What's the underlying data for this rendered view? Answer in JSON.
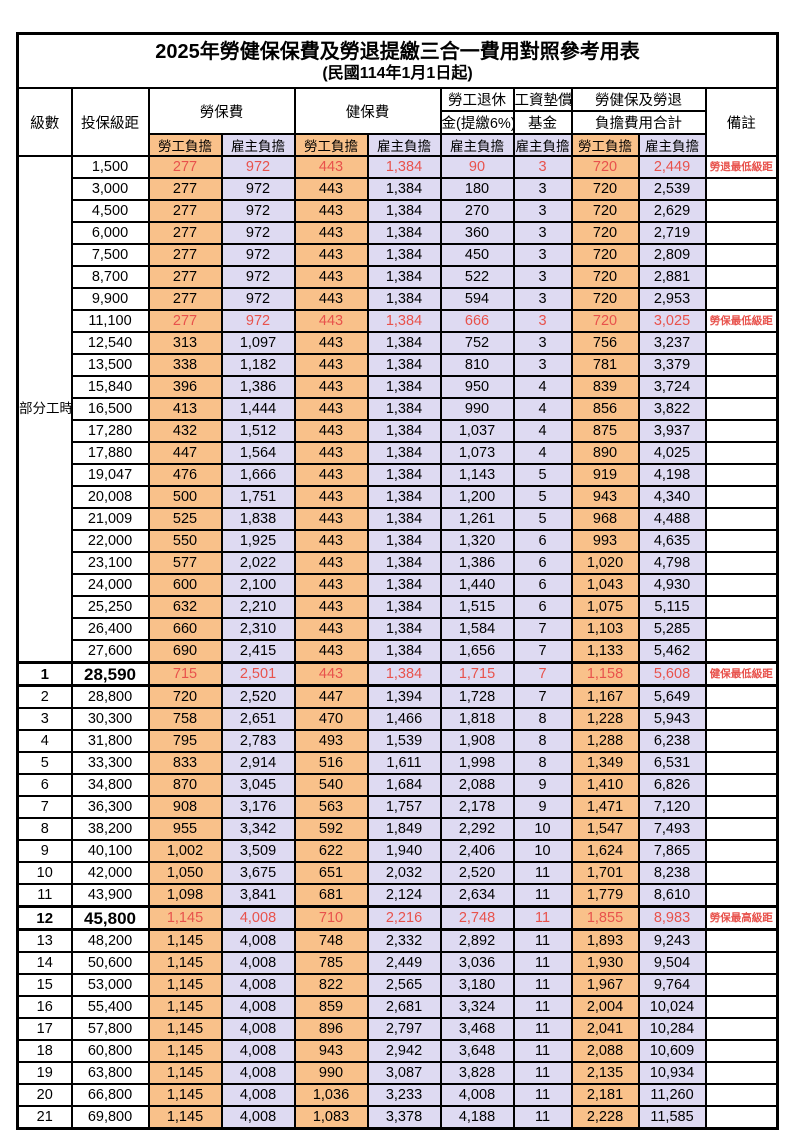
{
  "title": "2025年勞健保保費及勞退提繳三合一費用對照參考用表",
  "subtitle": "(民國114年1月1日起)",
  "columns": {
    "level": "級數",
    "bracket": "投保級距",
    "labor_insurance": "勞保費",
    "health_insurance": "健保費",
    "pension_line1": "勞工退休",
    "pension_line2": "金(提繳6%)",
    "wage_fund_line1": "工資墊償",
    "wage_fund_line2": "基金",
    "total_line1": "勞健保及勞退",
    "total_line2": "負擔費用合計",
    "note": "備註",
    "employee_burden": "勞工負擔",
    "employer_burden": "雇主負擔"
  },
  "group": {
    "label": "部分工時",
    "span": 23
  },
  "colors": {
    "employee_bg": "#F9C18A",
    "employer_bg": "#DEDAF2",
    "highlight": "#E8524C"
  },
  "rows": [
    {
      "level": "",
      "bracket": "1,500",
      "v": [
        "277",
        "972",
        "443",
        "1,384",
        "90",
        "3",
        "720",
        "2,449"
      ],
      "note": "勞退最低級距",
      "red": true,
      "bold": false
    },
    {
      "level": "",
      "bracket": "3,000",
      "v": [
        "277",
        "972",
        "443",
        "1,384",
        "180",
        "3",
        "720",
        "2,539"
      ],
      "note": "",
      "red": false,
      "bold": false
    },
    {
      "level": "",
      "bracket": "4,500",
      "v": [
        "277",
        "972",
        "443",
        "1,384",
        "270",
        "3",
        "720",
        "2,629"
      ],
      "note": "",
      "red": false,
      "bold": false
    },
    {
      "level": "",
      "bracket": "6,000",
      "v": [
        "277",
        "972",
        "443",
        "1,384",
        "360",
        "3",
        "720",
        "2,719"
      ],
      "note": "",
      "red": false,
      "bold": false
    },
    {
      "level": "",
      "bracket": "7,500",
      "v": [
        "277",
        "972",
        "443",
        "1,384",
        "450",
        "3",
        "720",
        "2,809"
      ],
      "note": "",
      "red": false,
      "bold": false
    },
    {
      "level": "",
      "bracket": "8,700",
      "v": [
        "277",
        "972",
        "443",
        "1,384",
        "522",
        "3",
        "720",
        "2,881"
      ],
      "note": "",
      "red": false,
      "bold": false
    },
    {
      "level": "",
      "bracket": "9,900",
      "v": [
        "277",
        "972",
        "443",
        "1,384",
        "594",
        "3",
        "720",
        "2,953"
      ],
      "note": "",
      "red": false,
      "bold": false
    },
    {
      "level": "",
      "bracket": "11,100",
      "v": [
        "277",
        "972",
        "443",
        "1,384",
        "666",
        "3",
        "720",
        "3,025"
      ],
      "note": "勞保最低級距",
      "red": true,
      "bold": false
    },
    {
      "level": "",
      "bracket": "12,540",
      "v": [
        "313",
        "1,097",
        "443",
        "1,384",
        "752",
        "3",
        "756",
        "3,237"
      ],
      "note": "",
      "red": false,
      "bold": false
    },
    {
      "level": "",
      "bracket": "13,500",
      "v": [
        "338",
        "1,182",
        "443",
        "1,384",
        "810",
        "3",
        "781",
        "3,379"
      ],
      "note": "",
      "red": false,
      "bold": false
    },
    {
      "level": "",
      "bracket": "15,840",
      "v": [
        "396",
        "1,386",
        "443",
        "1,384",
        "950",
        "4",
        "839",
        "3,724"
      ],
      "note": "",
      "red": false,
      "bold": false
    },
    {
      "level": "",
      "bracket": "16,500",
      "v": [
        "413",
        "1,444",
        "443",
        "1,384",
        "990",
        "4",
        "856",
        "3,822"
      ],
      "note": "",
      "red": false,
      "bold": false
    },
    {
      "level": "",
      "bracket": "17,280",
      "v": [
        "432",
        "1,512",
        "443",
        "1,384",
        "1,037",
        "4",
        "875",
        "3,937"
      ],
      "note": "",
      "red": false,
      "bold": false
    },
    {
      "level": "",
      "bracket": "17,880",
      "v": [
        "447",
        "1,564",
        "443",
        "1,384",
        "1,073",
        "4",
        "890",
        "4,025"
      ],
      "note": "",
      "red": false,
      "bold": false
    },
    {
      "level": "",
      "bracket": "19,047",
      "v": [
        "476",
        "1,666",
        "443",
        "1,384",
        "1,143",
        "5",
        "919",
        "4,198"
      ],
      "note": "",
      "red": false,
      "bold": false
    },
    {
      "level": "",
      "bracket": "20,008",
      "v": [
        "500",
        "1,751",
        "443",
        "1,384",
        "1,200",
        "5",
        "943",
        "4,340"
      ],
      "note": "",
      "red": false,
      "bold": false
    },
    {
      "level": "",
      "bracket": "21,009",
      "v": [
        "525",
        "1,838",
        "443",
        "1,384",
        "1,261",
        "5",
        "968",
        "4,488"
      ],
      "note": "",
      "red": false,
      "bold": false
    },
    {
      "level": "",
      "bracket": "22,000",
      "v": [
        "550",
        "1,925",
        "443",
        "1,384",
        "1,320",
        "6",
        "993",
        "4,635"
      ],
      "note": "",
      "red": false,
      "bold": false
    },
    {
      "level": "",
      "bracket": "23,100",
      "v": [
        "577",
        "2,022",
        "443",
        "1,384",
        "1,386",
        "6",
        "1,020",
        "4,798"
      ],
      "note": "",
      "red": false,
      "bold": false
    },
    {
      "level": "",
      "bracket": "24,000",
      "v": [
        "600",
        "2,100",
        "443",
        "1,384",
        "1,440",
        "6",
        "1,043",
        "4,930"
      ],
      "note": "",
      "red": false,
      "bold": false
    },
    {
      "level": "",
      "bracket": "25,250",
      "v": [
        "632",
        "2,210",
        "443",
        "1,384",
        "1,515",
        "6",
        "1,075",
        "5,115"
      ],
      "note": "",
      "red": false,
      "bold": false
    },
    {
      "level": "",
      "bracket": "26,400",
      "v": [
        "660",
        "2,310",
        "443",
        "1,384",
        "1,584",
        "7",
        "1,103",
        "5,285"
      ],
      "note": "",
      "red": false,
      "bold": false
    },
    {
      "level": "",
      "bracket": "27,600",
      "v": [
        "690",
        "2,415",
        "443",
        "1,384",
        "1,656",
        "7",
        "1,133",
        "5,462"
      ],
      "note": "",
      "red": false,
      "bold": false
    },
    {
      "level": "1",
      "bracket": "28,590",
      "v": [
        "715",
        "2,501",
        "443",
        "1,384",
        "1,715",
        "7",
        "1,158",
        "5,608"
      ],
      "note": "健保最低級距",
      "red": true,
      "bold": true
    },
    {
      "level": "2",
      "bracket": "28,800",
      "v": [
        "720",
        "2,520",
        "447",
        "1,394",
        "1,728",
        "7",
        "1,167",
        "5,649"
      ],
      "note": "",
      "red": false,
      "bold": false
    },
    {
      "level": "3",
      "bracket": "30,300",
      "v": [
        "758",
        "2,651",
        "470",
        "1,466",
        "1,818",
        "8",
        "1,228",
        "5,943"
      ],
      "note": "",
      "red": false,
      "bold": false
    },
    {
      "level": "4",
      "bracket": "31,800",
      "v": [
        "795",
        "2,783",
        "493",
        "1,539",
        "1,908",
        "8",
        "1,288",
        "6,238"
      ],
      "note": "",
      "red": false,
      "bold": false
    },
    {
      "level": "5",
      "bracket": "33,300",
      "v": [
        "833",
        "2,914",
        "516",
        "1,611",
        "1,998",
        "8",
        "1,349",
        "6,531"
      ],
      "note": "",
      "red": false,
      "bold": false
    },
    {
      "level": "6",
      "bracket": "34,800",
      "v": [
        "870",
        "3,045",
        "540",
        "1,684",
        "2,088",
        "9",
        "1,410",
        "6,826"
      ],
      "note": "",
      "red": false,
      "bold": false
    },
    {
      "level": "7",
      "bracket": "36,300",
      "v": [
        "908",
        "3,176",
        "563",
        "1,757",
        "2,178",
        "9",
        "1,471",
        "7,120"
      ],
      "note": "",
      "red": false,
      "bold": false
    },
    {
      "level": "8",
      "bracket": "38,200",
      "v": [
        "955",
        "3,342",
        "592",
        "1,849",
        "2,292",
        "10",
        "1,547",
        "7,493"
      ],
      "note": "",
      "red": false,
      "bold": false
    },
    {
      "level": "9",
      "bracket": "40,100",
      "v": [
        "1,002",
        "3,509",
        "622",
        "1,940",
        "2,406",
        "10",
        "1,624",
        "7,865"
      ],
      "note": "",
      "red": false,
      "bold": false
    },
    {
      "level": "10",
      "bracket": "42,000",
      "v": [
        "1,050",
        "3,675",
        "651",
        "2,032",
        "2,520",
        "11",
        "1,701",
        "8,238"
      ],
      "note": "",
      "red": false,
      "bold": false
    },
    {
      "level": "11",
      "bracket": "43,900",
      "v": [
        "1,098",
        "3,841",
        "681",
        "2,124",
        "2,634",
        "11",
        "1,779",
        "8,610"
      ],
      "note": "",
      "red": false,
      "bold": false
    },
    {
      "level": "12",
      "bracket": "45,800",
      "v": [
        "1,145",
        "4,008",
        "710",
        "2,216",
        "2,748",
        "11",
        "1,855",
        "8,983"
      ],
      "note": "勞保最高級距",
      "red": true,
      "bold": true
    },
    {
      "level": "13",
      "bracket": "48,200",
      "v": [
        "1,145",
        "4,008",
        "748",
        "2,332",
        "2,892",
        "11",
        "1,893",
        "9,243"
      ],
      "note": "",
      "red": false,
      "bold": false
    },
    {
      "level": "14",
      "bracket": "50,600",
      "v": [
        "1,145",
        "4,008",
        "785",
        "2,449",
        "3,036",
        "11",
        "1,930",
        "9,504"
      ],
      "note": "",
      "red": false,
      "bold": false
    },
    {
      "level": "15",
      "bracket": "53,000",
      "v": [
        "1,145",
        "4,008",
        "822",
        "2,565",
        "3,180",
        "11",
        "1,967",
        "9,764"
      ],
      "note": "",
      "red": false,
      "bold": false
    },
    {
      "level": "16",
      "bracket": "55,400",
      "v": [
        "1,145",
        "4,008",
        "859",
        "2,681",
        "3,324",
        "11",
        "2,004",
        "10,024"
      ],
      "note": "",
      "red": false,
      "bold": false
    },
    {
      "level": "17",
      "bracket": "57,800",
      "v": [
        "1,145",
        "4,008",
        "896",
        "2,797",
        "3,468",
        "11",
        "2,041",
        "10,284"
      ],
      "note": "",
      "red": false,
      "bold": false
    },
    {
      "level": "18",
      "bracket": "60,800",
      "v": [
        "1,145",
        "4,008",
        "943",
        "2,942",
        "3,648",
        "11",
        "2,088",
        "10,609"
      ],
      "note": "",
      "red": false,
      "bold": false
    },
    {
      "level": "19",
      "bracket": "63,800",
      "v": [
        "1,145",
        "4,008",
        "990",
        "3,087",
        "3,828",
        "11",
        "2,135",
        "10,934"
      ],
      "note": "",
      "red": false,
      "bold": false
    },
    {
      "level": "20",
      "bracket": "66,800",
      "v": [
        "1,145",
        "4,008",
        "1,036",
        "3,233",
        "4,008",
        "11",
        "2,181",
        "11,260"
      ],
      "note": "",
      "red": false,
      "bold": false
    },
    {
      "level": "21",
      "bracket": "69,800",
      "v": [
        "1,145",
        "4,008",
        "1,083",
        "3,378",
        "4,188",
        "11",
        "2,228",
        "11,585"
      ],
      "note": "",
      "red": false,
      "bold": false
    }
  ]
}
